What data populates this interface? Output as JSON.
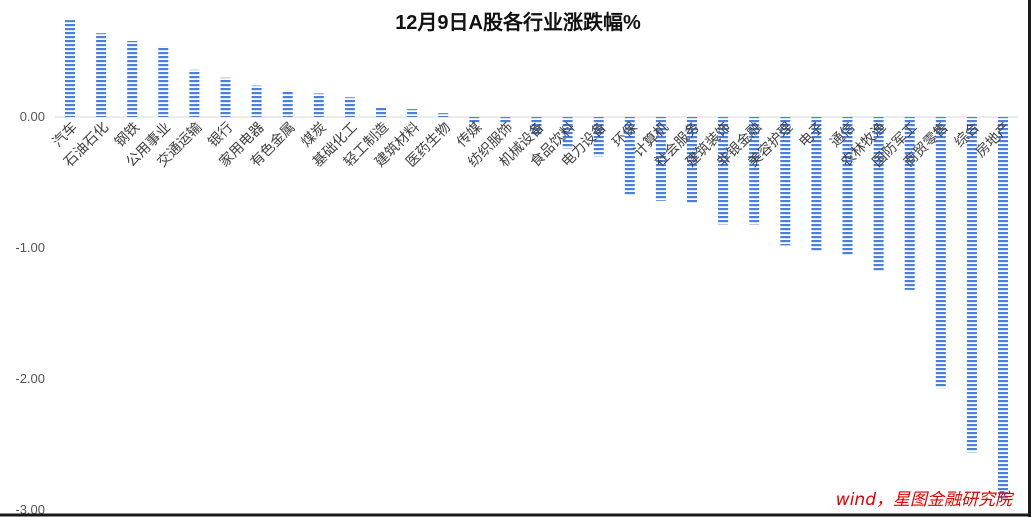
{
  "chart_data": {
    "type": "bar",
    "title": "12月9日A股各行业涨跌幅%",
    "xlabel": "",
    "ylabel": "",
    "ylim": [
      -3.0,
      0.75
    ],
    "yticks": [
      "0.00",
      "-1.00",
      "-2.00",
      "-3.00"
    ],
    "ytick_values": [
      0,
      -1,
      -2,
      -3
    ],
    "grid": false,
    "legend": "none",
    "bar_color": "#4a7fdc",
    "categories": [
      "汽车",
      "石油石化",
      "钢铁",
      "公用事业",
      "交通运输",
      "银行",
      "家用电器",
      "有色金属",
      "煤炭",
      "基础化工",
      "轻工制造",
      "建筑材料",
      "医药生物",
      "传媒",
      "纺织服饰",
      "机械设备",
      "食品饮料",
      "电力设备",
      "环保",
      "计算机",
      "社会服务",
      "建筑装饰",
      "非银金融",
      "美容护理",
      "电子",
      "通信",
      "农林牧渔",
      "国防军工",
      "商贸零售",
      "综合",
      "房地产"
    ],
    "values": [
      0.74,
      0.64,
      0.58,
      0.54,
      0.36,
      0.3,
      0.24,
      0.2,
      0.18,
      0.15,
      0.07,
      0.06,
      0.03,
      -0.05,
      -0.05,
      -0.14,
      -0.24,
      -0.3,
      -0.6,
      -0.64,
      -0.66,
      -0.82,
      -0.82,
      -0.98,
      -1.03,
      -1.06,
      -1.18,
      -1.32,
      -2.07,
      -2.56,
      -2.92
    ]
  },
  "source_note": "wind，星图金融研究院"
}
